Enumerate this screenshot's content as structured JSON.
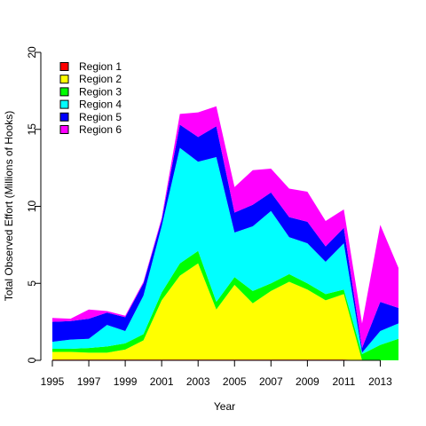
{
  "chart_data": {
    "type": "area",
    "stacked": true,
    "xlabel": "Year",
    "ylabel": "Total Observed Effort (Millions of Hooks)",
    "xlim": [
      1995,
      2014
    ],
    "ylim": [
      0,
      20
    ],
    "x_ticks": [
      1995,
      1997,
      1999,
      2001,
      2003,
      2005,
      2007,
      2009,
      2011,
      2013
    ],
    "y_ticks": [
      0,
      5,
      10,
      15,
      20
    ],
    "grid": false,
    "legend_position": "top-left",
    "x": [
      1995,
      1996,
      1997,
      1998,
      1999,
      2000,
      2001,
      2002,
      2003,
      2004,
      2005,
      2006,
      2007,
      2008,
      2009,
      2010,
      2011,
      2012,
      2013,
      2014
    ],
    "series": [
      {
        "name": "Region 1",
        "color": "#FF0000",
        "values": [
          0.05,
          0.05,
          0.05,
          0.05,
          0.05,
          0.05,
          0.05,
          0.05,
          0.05,
          0.05,
          0.05,
          0.05,
          0.05,
          0.05,
          0.05,
          0.05,
          0.05,
          0.0,
          0.0,
          0.0
        ]
      },
      {
        "name": "Region 2",
        "color": "#FFFF00",
        "values": [
          0.5,
          0.5,
          0.45,
          0.45,
          0.65,
          1.25,
          3.85,
          5.45,
          6.25,
          3.25,
          4.85,
          3.65,
          4.45,
          5.05,
          4.55,
          3.85,
          4.25,
          0.0,
          0.0,
          0.0
        ]
      },
      {
        "name": "Region 3",
        "color": "#00FF00",
        "values": [
          0.2,
          0.2,
          0.3,
          0.4,
          0.4,
          0.4,
          0.5,
          0.8,
          0.8,
          0.5,
          0.5,
          0.8,
          0.5,
          0.5,
          0.4,
          0.4,
          0.3,
          0.4,
          1.0,
          1.4
        ]
      },
      {
        "name": "Region 4",
        "color": "#00FFFF",
        "values": [
          0.45,
          0.6,
          0.6,
          1.4,
          0.8,
          2.5,
          4.3,
          7.5,
          5.8,
          9.4,
          2.9,
          4.2,
          4.7,
          2.4,
          2.6,
          2.1,
          3.0,
          0.1,
          0.9,
          1.0
        ]
      },
      {
        "name": "Region 5",
        "color": "#0000FF",
        "values": [
          1.3,
          1.2,
          1.3,
          0.8,
          0.9,
          0.8,
          0.4,
          1.5,
          1.6,
          2.0,
          1.3,
          1.4,
          1.2,
          1.3,
          1.4,
          1.0,
          1.0,
          0.3,
          1.9,
          1.0
        ]
      },
      {
        "name": "Region 6",
        "color": "#FF00FF",
        "values": [
          0.25,
          0.15,
          0.6,
          0.1,
          0.1,
          0.1,
          0.15,
          0.7,
          1.6,
          1.3,
          1.65,
          2.25,
          1.55,
          1.85,
          1.95,
          1.65,
          1.2,
          1.6,
          5.0,
          2.6
        ]
      }
    ]
  }
}
